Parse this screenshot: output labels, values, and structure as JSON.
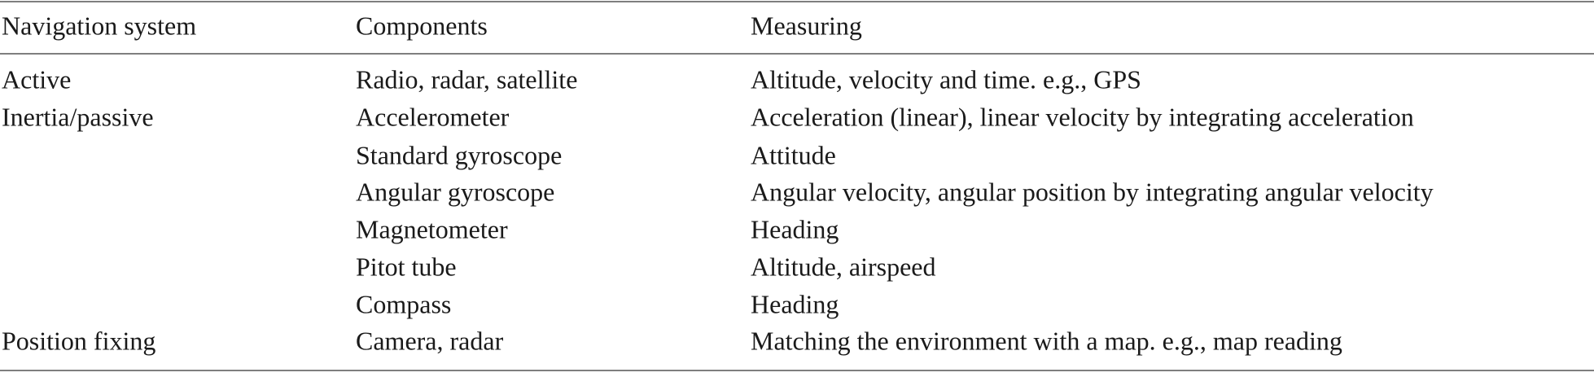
{
  "table": {
    "header": [
      "Navigation system",
      "Components",
      "Measuring"
    ],
    "rows": [
      [
        "Active",
        "Radio, radar, satellite",
        "Altitude, velocity and time. e.g., GPS"
      ],
      [
        "Inertia/passive",
        "Accelerometer",
        "Acceleration (linear), linear velocity by integrating acceleration"
      ],
      [
        null,
        "Standard gyroscope",
        "Attitude"
      ],
      [
        null,
        "Angular gyroscope",
        "Angular velocity, angular position by integrating angular velocity"
      ],
      [
        null,
        "Magnetometer",
        "Heading"
      ],
      [
        null,
        "Pitot tube",
        "Altitude, airspeed"
      ],
      [
        null,
        "Compass",
        "Heading"
      ],
      [
        "Position fixing",
        "Camera, radar",
        "Matching the environment with a map. e.g., map reading"
      ]
    ]
  }
}
